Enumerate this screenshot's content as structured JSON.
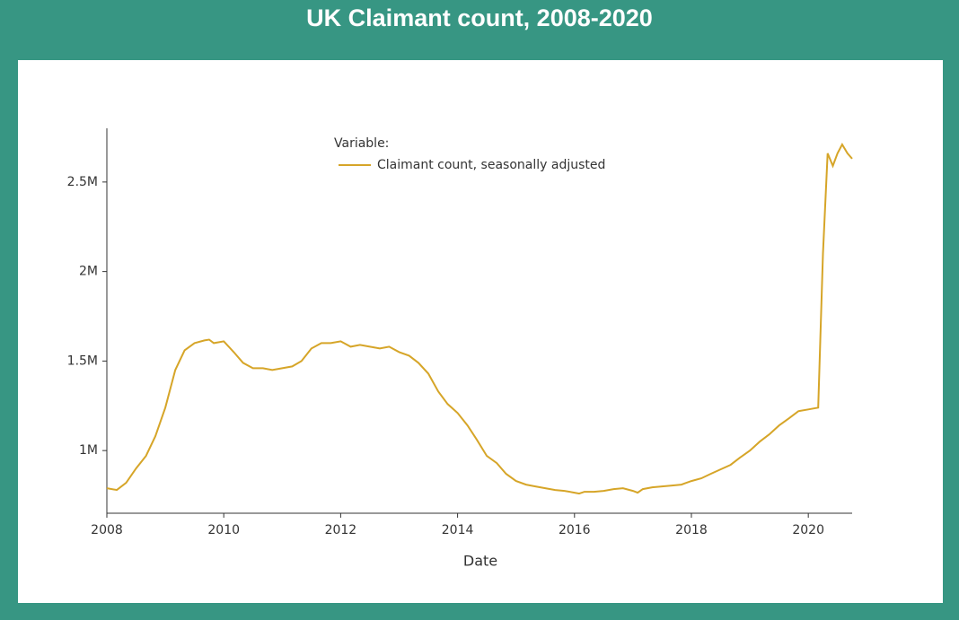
{
  "chart_data": {
    "type": "line",
    "title": "UK Claimant count, 2008-2020",
    "xlabel": "Date",
    "legend_title": "Variable:",
    "x": [
      2008,
      2008.17,
      2008.33,
      2008.5,
      2008.67,
      2008.83,
      2009,
      2009.17,
      2009.33,
      2009.5,
      2009.67,
      2009.75,
      2009.83,
      2010,
      2010.17,
      2010.33,
      2010.5,
      2010.67,
      2010.83,
      2011,
      2011.17,
      2011.33,
      2011.5,
      2011.67,
      2011.83,
      2012,
      2012.17,
      2012.33,
      2012.5,
      2012.67,
      2012.83,
      2013,
      2013.17,
      2013.33,
      2013.5,
      2013.67,
      2013.83,
      2014,
      2014.17,
      2014.33,
      2014.5,
      2014.67,
      2014.83,
      2015,
      2015.17,
      2015.33,
      2015.5,
      2015.67,
      2015.83,
      2016,
      2016.08,
      2016.17,
      2016.33,
      2016.5,
      2016.67,
      2016.83,
      2017,
      2017.08,
      2017.17,
      2017.33,
      2017.5,
      2017.67,
      2017.83,
      2018,
      2018.17,
      2018.33,
      2018.5,
      2018.67,
      2018.83,
      2019,
      2019.17,
      2019.33,
      2019.5,
      2019.67,
      2019.83,
      2020,
      2020.17,
      2020.25,
      2020.33,
      2020.42,
      2020.5,
      2020.58,
      2020.67,
      2020.75
    ],
    "series": [
      {
        "name": "Claimant count, seasonally adjusted",
        "color": "#d6a528",
        "values": [
          790000,
          780000,
          820000,
          900000,
          970000,
          1080000,
          1240000,
          1450000,
          1560000,
          1600000,
          1615000,
          1620000,
          1600000,
          1610000,
          1550000,
          1490000,
          1460000,
          1460000,
          1450000,
          1460000,
          1470000,
          1500000,
          1570000,
          1600000,
          1600000,
          1610000,
          1580000,
          1590000,
          1580000,
          1570000,
          1580000,
          1550000,
          1530000,
          1490000,
          1430000,
          1330000,
          1260000,
          1210000,
          1140000,
          1060000,
          970000,
          930000,
          870000,
          830000,
          810000,
          800000,
          790000,
          780000,
          775000,
          765000,
          760000,
          770000,
          770000,
          775000,
          785000,
          790000,
          775000,
          765000,
          785000,
          795000,
          800000,
          805000,
          810000,
          830000,
          845000,
          870000,
          895000,
          920000,
          960000,
          1000000,
          1050000,
          1090000,
          1140000,
          1180000,
          1220000,
          1230000,
          1240000,
          2100000,
          2660000,
          2590000,
          2660000,
          2710000,
          2660000,
          2630000
        ]
      }
    ],
    "xlim": [
      2008,
      2020.75
    ],
    "xticks": [
      2008,
      2010,
      2012,
      2014,
      2016,
      2018,
      2020
    ],
    "ylim": [
      650000,
      2800000
    ],
    "yticks": [
      {
        "value": 1000000,
        "label": "1M"
      },
      {
        "value": 1500000,
        "label": "1.5M"
      },
      {
        "value": 2000000,
        "label": "2M"
      },
      {
        "value": 2500000,
        "label": "2.5M"
      }
    ],
    "grid": false
  }
}
